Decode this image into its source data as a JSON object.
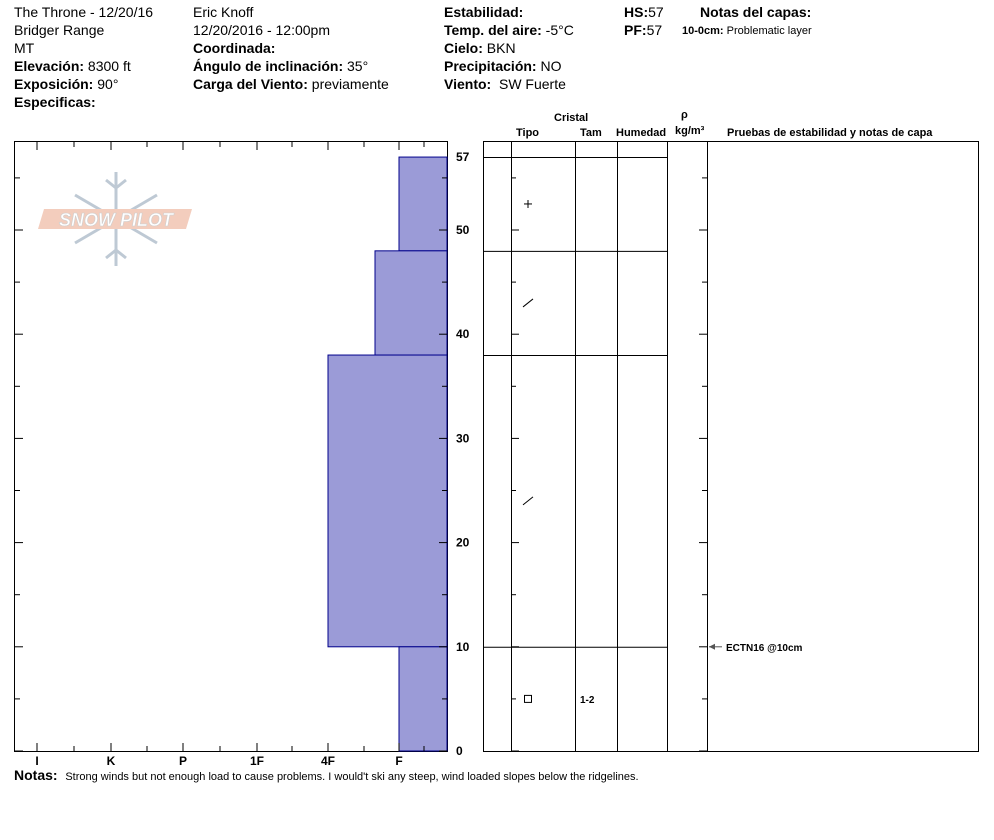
{
  "header": {
    "col1": {
      "site_date": "The Throne - 12/20/16",
      "range": "Bridger Range",
      "state": "MT",
      "elev_label": "Elevación:",
      "elev_value": "8300 ft",
      "aspect_label": "Exposición:",
      "aspect_value": "90°",
      "specifics_label": "Especificas:"
    },
    "col2": {
      "observer": "Eric Knoff",
      "datetime": "12/20/2016 - 12:00pm",
      "coord_label": "Coordinada:",
      "slope_label": "Ángulo de inclinación:",
      "slope_value": "35°",
      "wind_load_label": "Carga del Viento:",
      "wind_load_value": "previamente"
    },
    "col3": {
      "stability_label": "Estabilidad:",
      "airtemp_label": "Temp. del aire:",
      "airtemp_value": "-5°C",
      "sky_label": "Cielo:",
      "sky_value": "BKN",
      "precip_label": "Precipitación:",
      "precip_value": "NO",
      "wind_label": "Viento:",
      "wind_value": "SW Fuerte"
    },
    "col4": {
      "hs_label": "HS:",
      "hs_value": "57",
      "pf_label": "PF:",
      "pf_value": "57"
    },
    "layer_notes": {
      "title": "Notas del capas:",
      "range": "10-0cm:",
      "text": "Problematic layer"
    }
  },
  "logo": {
    "text": "SNOW PILOT"
  },
  "table_header": {
    "crystal": "Cristal",
    "type": "Tipo",
    "size": "Tam",
    "moisture": "Humedad",
    "rho": "ρ",
    "density_unit": "kg/m³",
    "tests": "Pruebas de estabilidad y notas de capa"
  },
  "chart_data": {
    "type": "step",
    "xlabel": "",
    "ylabel": "",
    "hardness_scale": [
      "I",
      "K",
      "P",
      "1F",
      "4F",
      "F"
    ],
    "y_ticks": [
      0,
      10,
      20,
      30,
      40,
      50,
      57
    ],
    "ylim": [
      0,
      57
    ],
    "layers": [
      {
        "top": 57,
        "bottom": 48,
        "hardness": "F"
      },
      {
        "top": 48,
        "bottom": 38,
        "hardness": "4F-F"
      },
      {
        "top": 38,
        "bottom": 10,
        "hardness": "4F"
      },
      {
        "top": 10,
        "bottom": 0,
        "hardness": "F"
      }
    ],
    "crystals": [
      {
        "height": 52.5,
        "symbol": "+",
        "size": ""
      },
      {
        "height": 43,
        "symbol": "/",
        "size": ""
      },
      {
        "height": 24,
        "symbol": "/",
        "size": ""
      },
      {
        "height": 5,
        "symbol": "□",
        "size": "1-2"
      }
    ],
    "test": {
      "height": 10,
      "text": "ECTN16 @10cm"
    },
    "colors": {
      "fill": "#9b9bd7",
      "edge": "#00008b"
    }
  },
  "notes": {
    "label": "Notas:",
    "text": "Strong winds but not enough load to cause problems. I would't ski any steep, wind loaded slopes below the ridgelines."
  }
}
